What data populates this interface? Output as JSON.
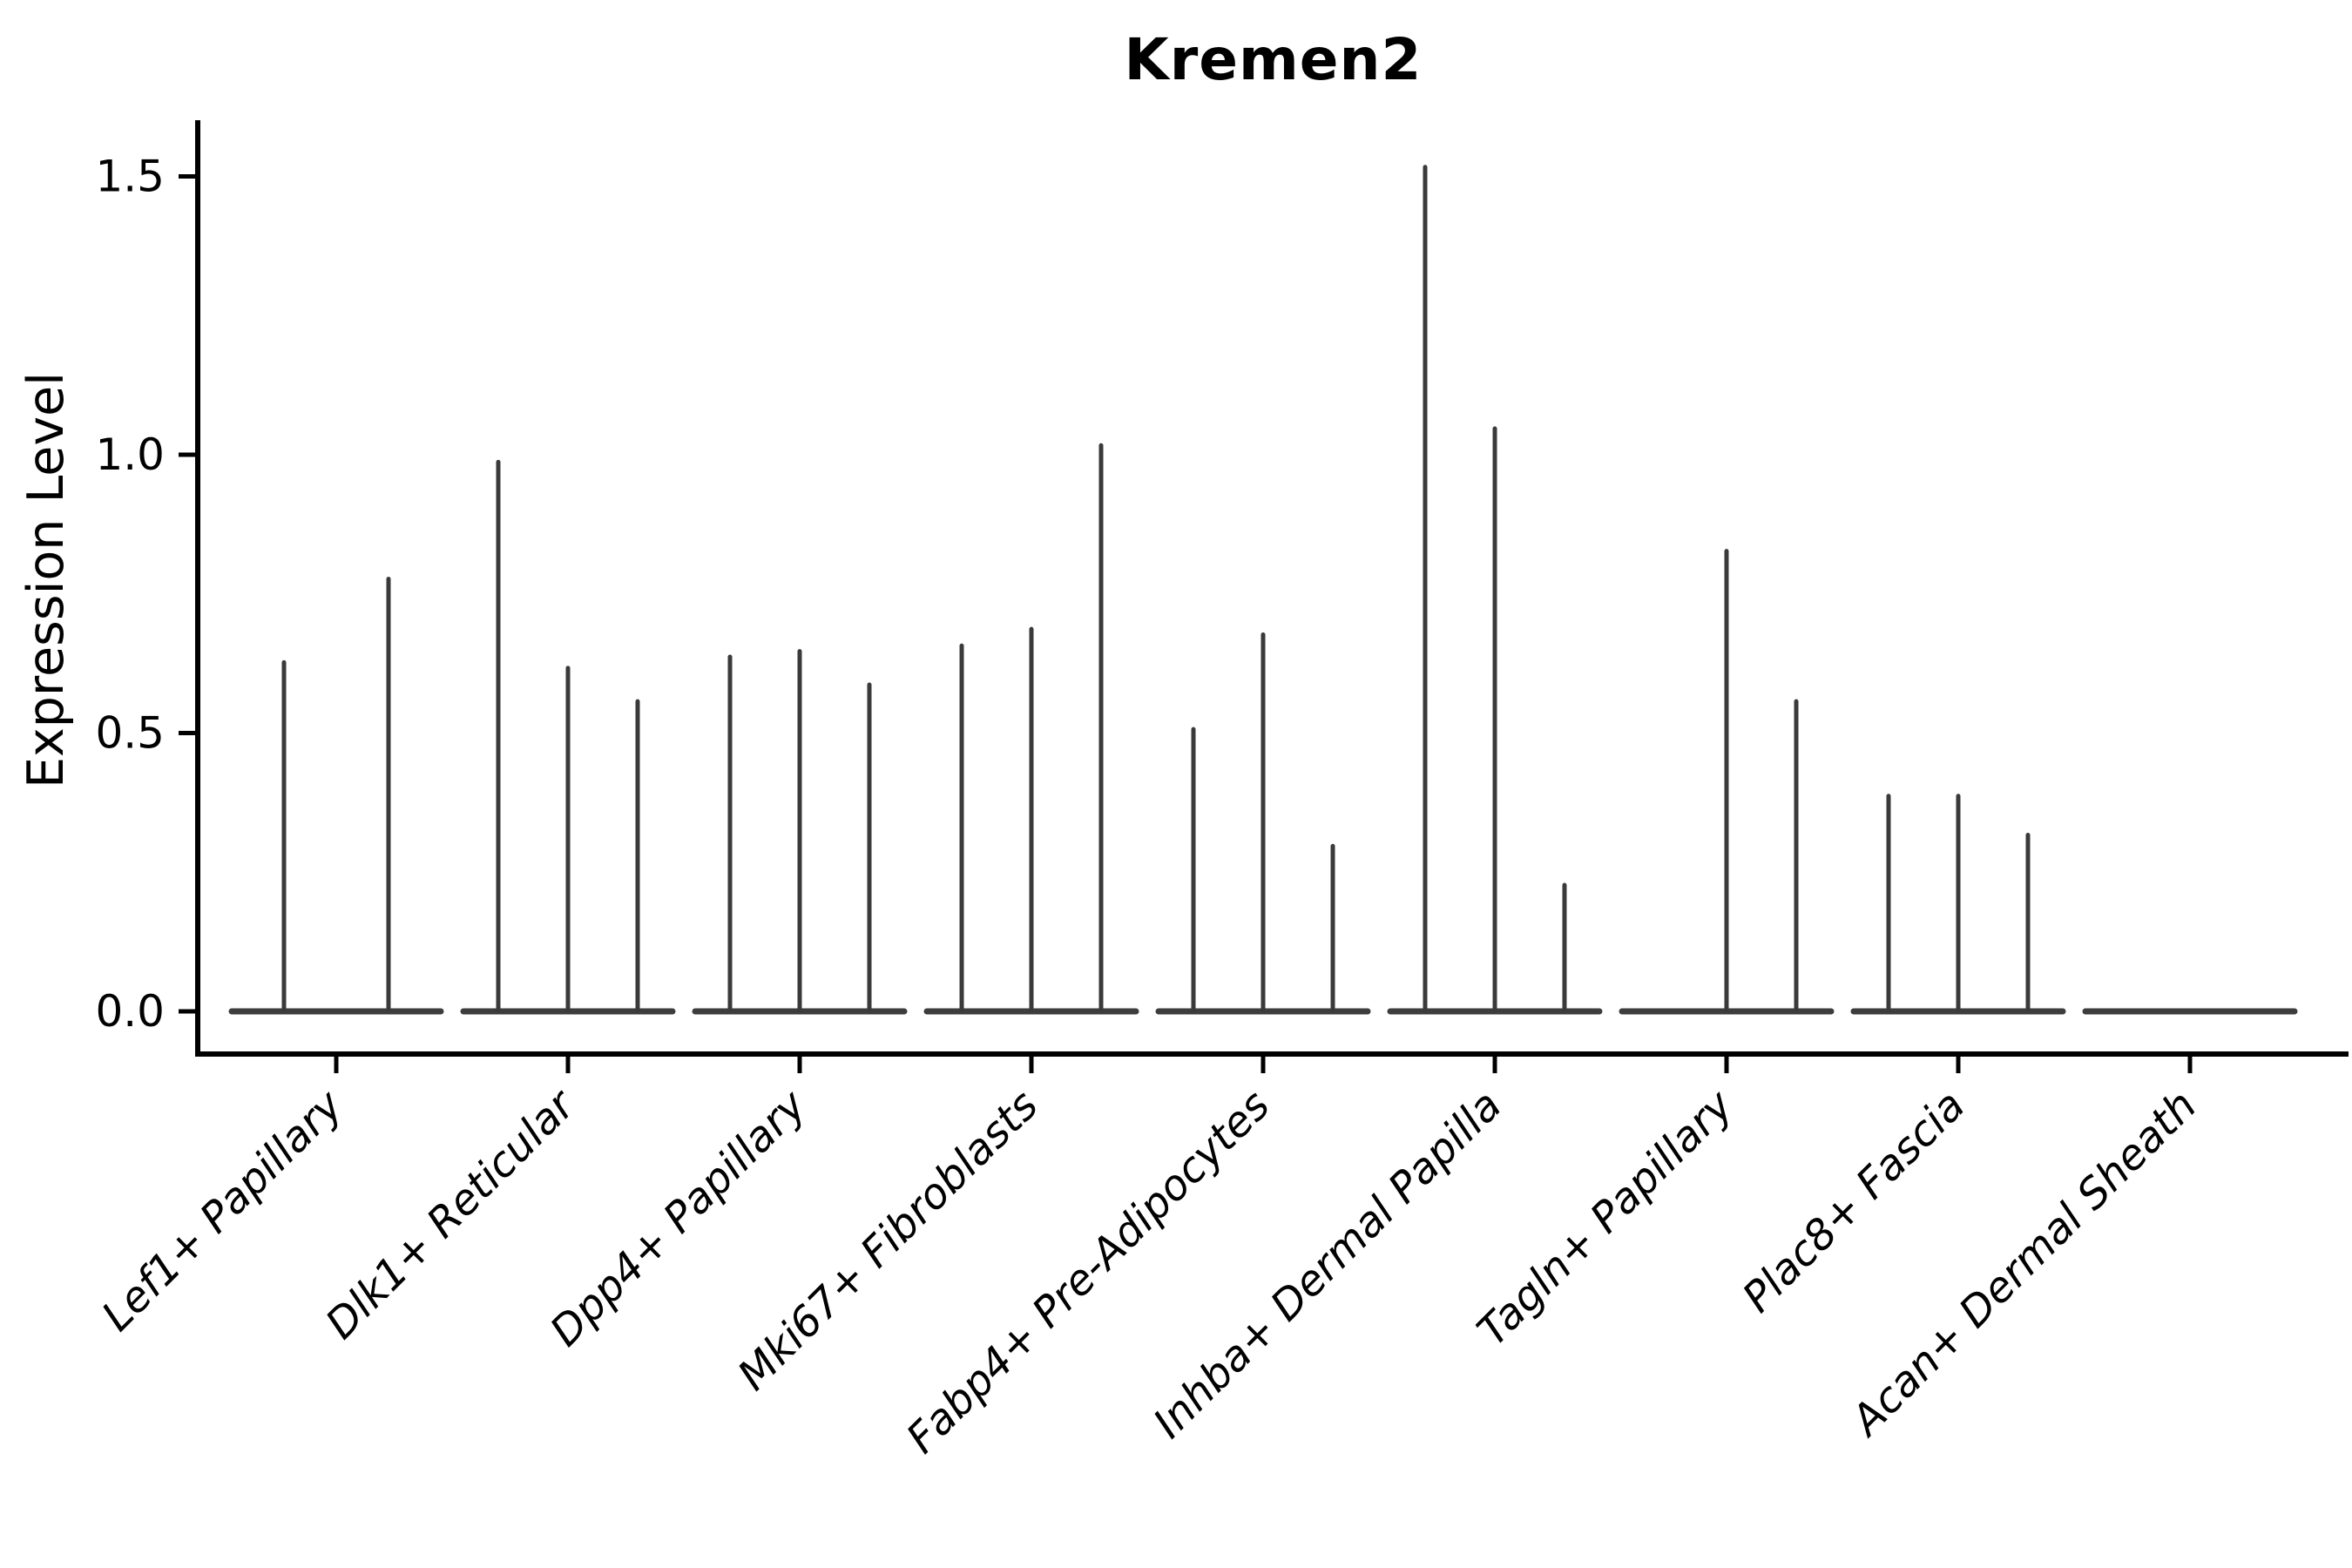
{
  "title": "Kremen2",
  "chart_data": {
    "type": "violin",
    "title": "Kremen2",
    "xlabel": "",
    "ylabel": "Expression Level",
    "ylim": [
      0,
      1.6
    ],
    "y_ticks": [
      0.0,
      0.5,
      1.0,
      1.5
    ],
    "y_tick_labels": [
      "0.0",
      "0.5",
      "1.0",
      "1.5"
    ],
    "grid": false,
    "legend_position": "none",
    "categories": [
      "Lef1+ Papillary",
      "Dlk1+ Reticular",
      "Dpp4+ Papillary",
      "Mki67+ Fibroblasts",
      "Fabp4+ Pre-Adipocytes",
      "Inhba+ Dermal Papilla",
      "Tagln+ Papillary",
      "Plac8+ Fascia",
      "Acan+ Dermal Sheath"
    ],
    "groups": [
      {
        "category": "Lef1+ Papillary",
        "n_slots": 2,
        "violins": [
          {
            "slot": 0,
            "max": 0.63
          },
          {
            "slot": 1,
            "max": 0.78
          }
        ]
      },
      {
        "category": "Dlk1+ Reticular",
        "n_slots": 3,
        "violins": [
          {
            "slot": 0,
            "max": 0.99
          },
          {
            "slot": 1,
            "max": 0.62
          },
          {
            "slot": 2,
            "max": 0.56
          }
        ]
      },
      {
        "category": "Dpp4+ Papillary",
        "n_slots": 3,
        "violins": [
          {
            "slot": 0,
            "max": 0.64
          },
          {
            "slot": 1,
            "max": 0.65
          },
          {
            "slot": 2,
            "max": 0.59
          }
        ]
      },
      {
        "category": "Mki67+ Fibroblasts",
        "n_slots": 3,
        "violins": [
          {
            "slot": 0,
            "max": 0.66
          },
          {
            "slot": 1,
            "max": 0.69
          },
          {
            "slot": 2,
            "max": 1.02
          }
        ]
      },
      {
        "category": "Fabp4+ Pre-Adipocytes",
        "n_slots": 3,
        "violins": [
          {
            "slot": 0,
            "max": 0.51
          },
          {
            "slot": 1,
            "max": 0.68
          },
          {
            "slot": 2,
            "max": 0.3
          }
        ]
      },
      {
        "category": "Inhba+ Dermal Papilla",
        "n_slots": 3,
        "violins": [
          {
            "slot": 0,
            "max": 1.52
          },
          {
            "slot": 1,
            "max": 1.05
          },
          {
            "slot": 2,
            "max": 0.23
          }
        ]
      },
      {
        "category": "Tagln+ Papillary",
        "n_slots": 3,
        "violins": [
          {
            "slot": 1,
            "max": 0.83
          },
          {
            "slot": 2,
            "max": 0.56
          }
        ]
      },
      {
        "category": "Plac8+ Fascia",
        "n_slots": 3,
        "violins": [
          {
            "slot": 0,
            "max": 0.39
          },
          {
            "slot": 1,
            "max": 0.39
          },
          {
            "slot": 2,
            "max": 0.32
          }
        ]
      },
      {
        "category": "Acan+ Dermal Sheath",
        "n_slots": 3,
        "violins": []
      }
    ],
    "baseline_value": 0.0,
    "notes": "Each violin is collapsed to a thin vertical spike over a flat baseline at 0; spike top = max expression."
  },
  "colors": {
    "background": "#ffffff",
    "axis": "#000000",
    "text": "#000000",
    "spike": "#3a3a3a",
    "baseline": "#3d3d3d"
  }
}
